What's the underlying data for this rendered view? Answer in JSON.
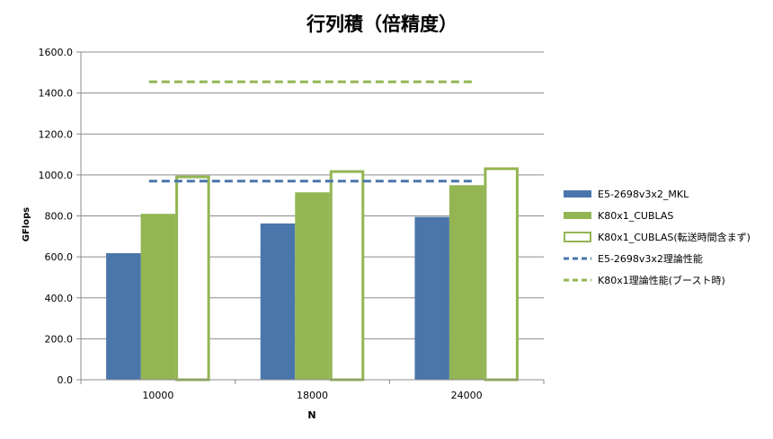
{
  "chart_data": {
    "type": "bar",
    "title": "行列積（倍精度）",
    "xlabel": "N",
    "ylabel": "GFlops",
    "categories": [
      "10000",
      "18000",
      "24000"
    ],
    "ylim": [
      0,
      1600
    ],
    "yticks": [
      0,
      200,
      400,
      600,
      800,
      1000,
      1200,
      1400,
      1600
    ],
    "ytick_labels": [
      "0.0",
      "200.0",
      "400.0",
      "600.0",
      "800.0",
      "1000.0",
      "1200.0",
      "1400.0",
      "1600.0"
    ],
    "grid": true,
    "legend_position": "right",
    "series": [
      {
        "name": "E5-2698v3x2_MKL",
        "values": [
          618,
          763,
          795
        ],
        "color": "#4a76ab",
        "style": "filled"
      },
      {
        "name": "K80x1_CUBLAS",
        "values": [
          810,
          915,
          950
        ],
        "color": "#93b553",
        "style": "filled"
      },
      {
        "name": "K80x1_CUBLAS(転送時間含まず)",
        "values": [
          997,
          1023,
          1037
        ],
        "color": "#93b553",
        "style": "outline"
      }
    ],
    "reference_lines": [
      {
        "name": "E5-2698v3x2理論性能",
        "value": 970,
        "color": "#4a76ab",
        "style": "dashed"
      },
      {
        "name": "K80x1理論性能(ブースト時)",
        "value": 1455,
        "color": "#93b553",
        "style": "dashed"
      }
    ]
  }
}
